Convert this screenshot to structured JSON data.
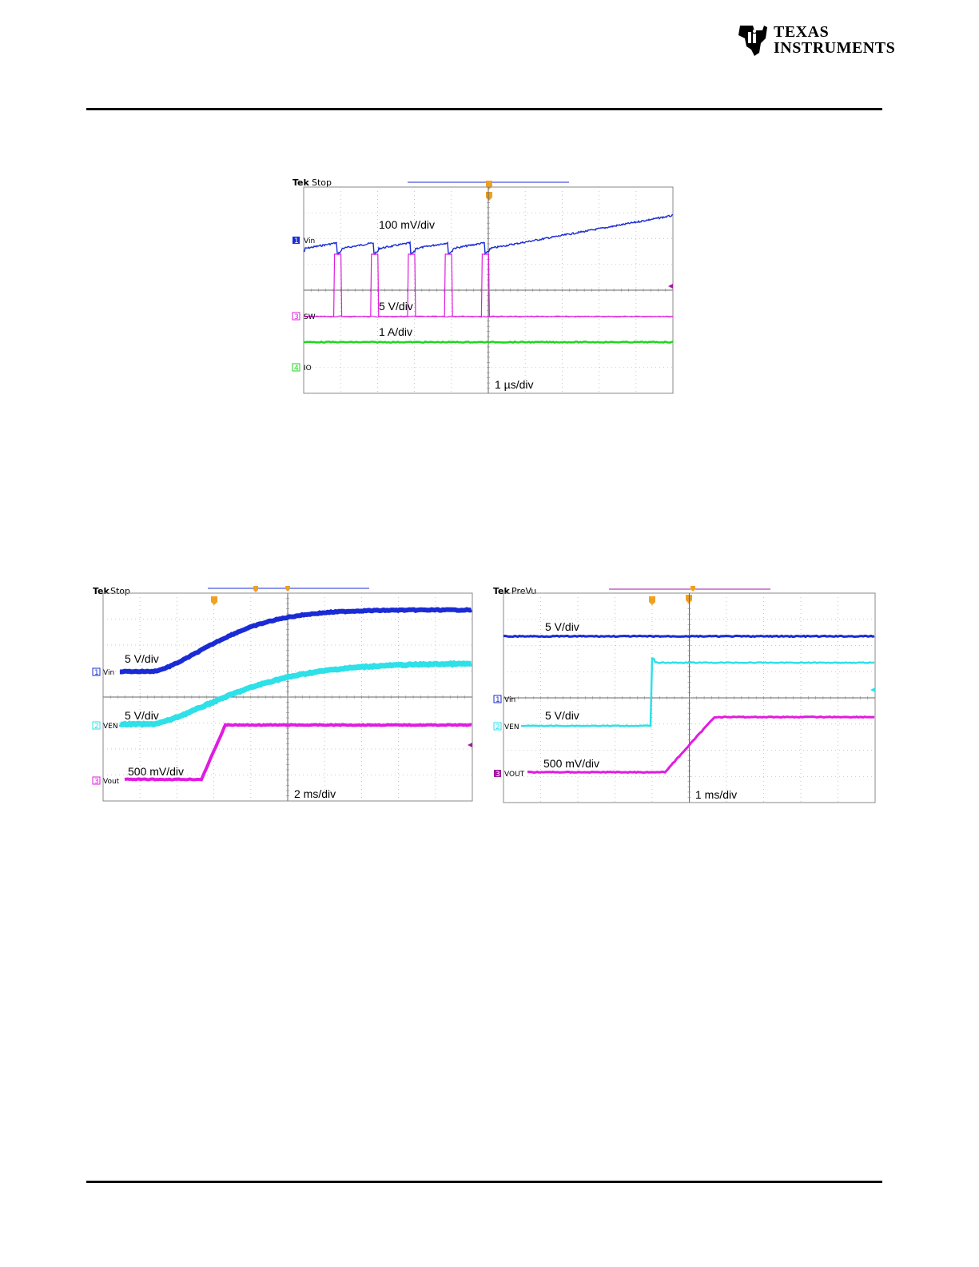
{
  "header": {
    "logo_line1": "TEXAS",
    "logo_line2": "INSTRUMENTS"
  },
  "chart_data": [
    {
      "type": "line",
      "scope_label": "Tek",
      "scope_state": "Stop",
      "grid": true,
      "time_scale": "1 µs/div",
      "channels": [
        {
          "id": "1",
          "name": "Vin",
          "scale": "100 mV/div",
          "color": "#1a2bd6"
        },
        {
          "id": "3",
          "name": "SW",
          "scale": "5 V/div",
          "color": "#e01ce0"
        },
        {
          "id": "4",
          "name": "IO",
          "scale": "1 A/div",
          "color": "#1ed61e"
        }
      ],
      "sw_pulse_times_div": [
        0.9,
        1.9,
        2.9,
        3.9,
        4.9
      ]
    },
    {
      "type": "line",
      "scope_label": "Tek",
      "scope_state": "Stop",
      "grid": true,
      "time_scale": "2 ms/div",
      "channels": [
        {
          "id": "1",
          "name": "Vin",
          "scale": "5 V/div",
          "color": "#1a2bd6"
        },
        {
          "id": "2",
          "name": "VEN",
          "scale": "5 V/div",
          "color": "#2ee0e8"
        },
        {
          "id": "3",
          "name": "Vout",
          "scale": "500 mV/div",
          "color": "#e01ce0"
        }
      ]
    },
    {
      "type": "line",
      "scope_label": "Tek",
      "scope_state": "PreVu",
      "grid": true,
      "time_scale": "1 ms/div",
      "channels": [
        {
          "id": "1",
          "name": "Vin",
          "scale": "5 V/div",
          "color": "#1a2bd6"
        },
        {
          "id": "2",
          "name": "VEN",
          "scale": "5 V/div",
          "color": "#2ee0e8"
        },
        {
          "id": "3",
          "name": "VOUT",
          "scale": "500 mV/div",
          "color": "#e01ce0"
        }
      ]
    }
  ]
}
